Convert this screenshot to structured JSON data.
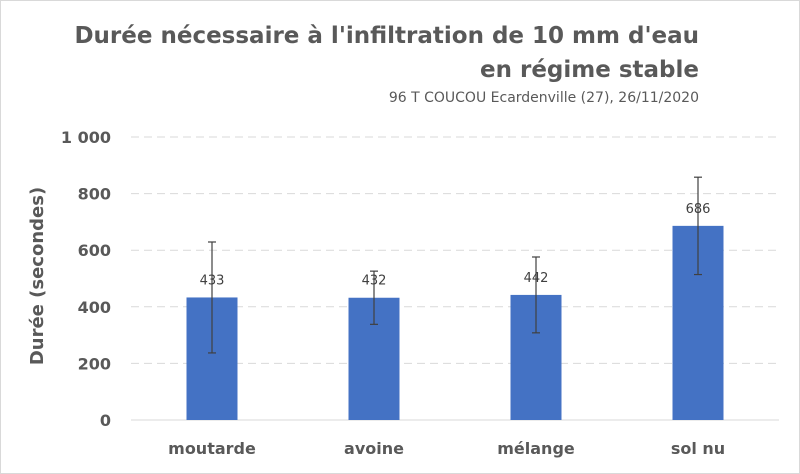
{
  "chart_data": {
    "type": "bar",
    "title": "Durée nécessaire à l'infiltration de 10 mm d'eau en régime stable",
    "subtitle": "96 T COUCOU Ecardenville (27), 26/11/2020",
    "xlabel": "",
    "ylabel": "Durée (secondes)",
    "ylim": [
      0,
      1000
    ],
    "yticks": [
      0,
      200,
      400,
      600,
      800,
      1000
    ],
    "ytick_labels": [
      "0",
      "200",
      "400",
      "600",
      "800",
      "1 000"
    ],
    "grid": true,
    "legend": "none",
    "categories": [
      "moutarde",
      "avoine",
      "mélange",
      "sol nu"
    ],
    "values": [
      433,
      432,
      442,
      686
    ],
    "data_labels": [
      "433",
      "432",
      "442",
      "686"
    ],
    "error_low": [
      237,
      338,
      308,
      514
    ],
    "error_high": [
      629,
      526,
      576,
      858
    ],
    "bar_color": "#4472C4",
    "error_color": "#404040",
    "grid_color": "#d9d9d9"
  }
}
